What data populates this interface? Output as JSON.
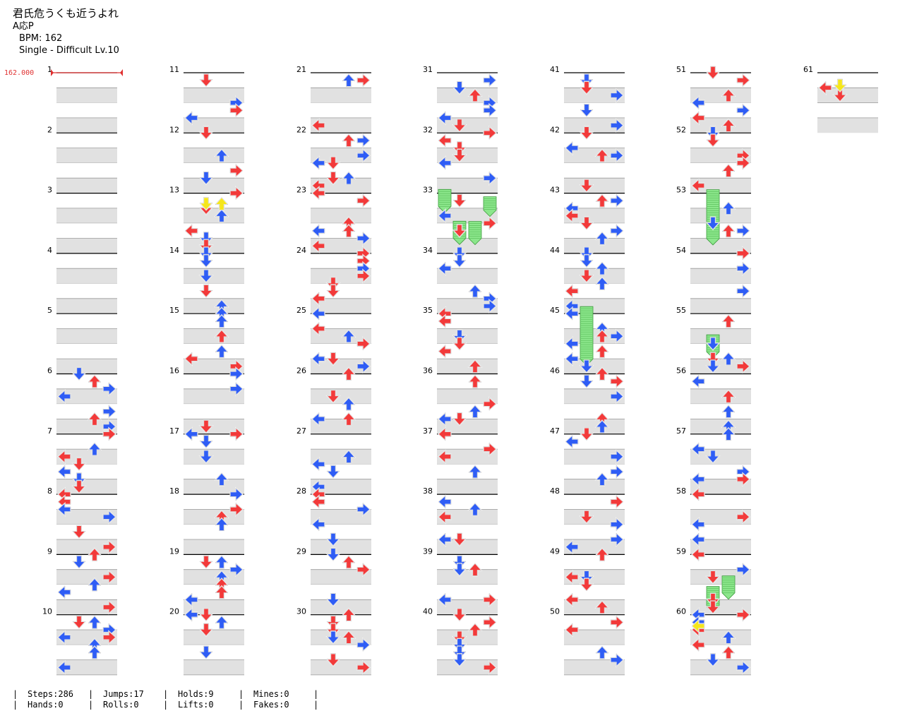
{
  "song": {
    "title": "君氏危うくも近うよれ",
    "artist": "A応P",
    "bpm_label": "BPM: 162",
    "chart_label": "Single - Difficult Lv.10"
  },
  "bpm_marker": "162.000",
  "measures_total": 61,
  "colors": {
    "left_arrow_red": "#f23a3a",
    "blue_arrow": "#2f5df5",
    "mine_hold_green": "#8be68b",
    "yellow": "#f5e61c",
    "band_gray": "#e1e1e1"
  },
  "stats": {
    "steps": "Steps:286",
    "hands": "Hands:0",
    "jumps": "Jumps:17",
    "rolls": "Rolls:0",
    "holds": "Holds:9",
    "lifts": "Lifts:0",
    "mines": "Mines:0",
    "fakes": "Fakes:0"
  },
  "chart_data": {
    "type": "step-chart",
    "bpm": 162,
    "difficulty": "Difficult",
    "level": 10,
    "measures": 61,
    "lanes": [
      "left",
      "down",
      "up",
      "right"
    ]
  }
}
